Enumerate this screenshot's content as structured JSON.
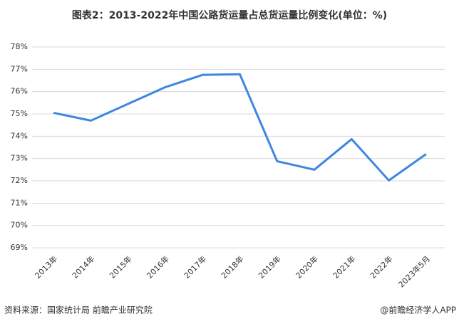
{
  "chart_data": {
    "type": "line",
    "title": "图表2：2013-2022年中国公路货运量占总货运量比例变化(单位：%)",
    "categories": [
      "2013年",
      "2014年",
      "2015年",
      "2016年",
      "2017年",
      "2018年",
      "2019年",
      "2020年",
      "2021年",
      "2022年",
      "2023年5月"
    ],
    "series": [
      {
        "color": "#3d87e0",
        "values": [
          75.05,
          74.7,
          75.45,
          76.2,
          76.75,
          76.78,
          72.88,
          72.5,
          73.87,
          72.02,
          73.2
        ]
      }
    ],
    "ylim": [
      69,
      78
    ],
    "yticks": [
      {
        "value": 69,
        "label": "69%"
      },
      {
        "value": 70,
        "label": "70%"
      },
      {
        "value": 71,
        "label": "71%"
      },
      {
        "value": 72,
        "label": "72%"
      },
      {
        "value": 73,
        "label": "73%"
      },
      {
        "value": 74,
        "label": "74%"
      },
      {
        "value": 75,
        "label": "75%"
      },
      {
        "value": 76,
        "label": "76%"
      },
      {
        "value": 77,
        "label": "77%"
      },
      {
        "value": 78,
        "label": "78%"
      }
    ],
    "grid": true,
    "source": "资料来源：国家统计局 前瞻产业研究院",
    "credit": "@前瞻经济学人APP"
  }
}
